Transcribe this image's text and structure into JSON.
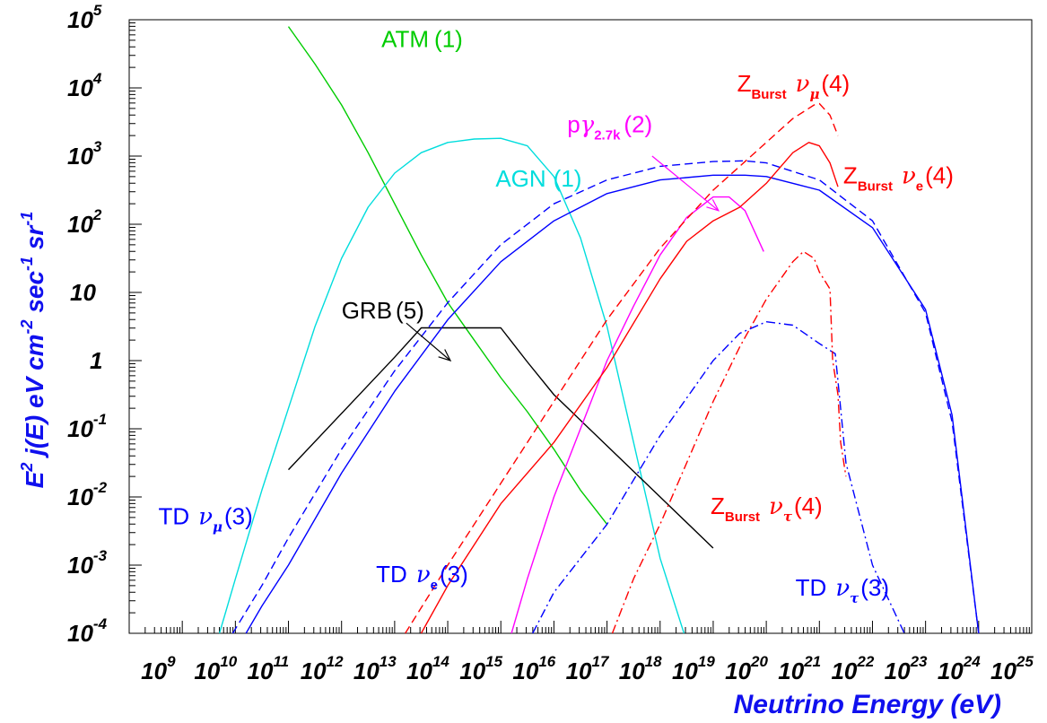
{
  "chart_data": {
    "type": "line",
    "xlabel": "Neutrino Energy (eV)",
    "ylabel": "E2 j(E) eV cm-2 sec-1 sr-1",
    "xscale": "log",
    "yscale": "log",
    "xlim": [
      8,
      25
    ],
    "ylim": [
      -4,
      5
    ],
    "grid": false,
    "x_ticks": [
      {
        "base": "10",
        "exp": "9",
        "value": 9
      },
      {
        "base": "10",
        "exp": "10",
        "value": 10
      },
      {
        "base": "10",
        "exp": "11",
        "value": 11
      },
      {
        "base": "10",
        "exp": "12",
        "value": 12
      },
      {
        "base": "10",
        "exp": "13",
        "value": 13
      },
      {
        "base": "10",
        "exp": "14",
        "value": 14
      },
      {
        "base": "10",
        "exp": "15",
        "value": 15
      },
      {
        "base": "10",
        "exp": "16",
        "value": 16
      },
      {
        "base": "10",
        "exp": "17",
        "value": 17
      },
      {
        "base": "10",
        "exp": "18",
        "value": 18
      },
      {
        "base": "10",
        "exp": "19",
        "value": 19
      },
      {
        "base": "10",
        "exp": "20",
        "value": 20
      },
      {
        "base": "10",
        "exp": "21",
        "value": 21
      },
      {
        "base": "10",
        "exp": "22",
        "value": 22
      },
      {
        "base": "10",
        "exp": "23",
        "value": 23
      },
      {
        "base": "10",
        "exp": "24",
        "value": 24
      },
      {
        "base": "10",
        "exp": "25",
        "value": 25
      }
    ],
    "y_ticks": [
      {
        "base": "10",
        "exp": "5",
        "value": 5
      },
      {
        "base": "10",
        "exp": "4",
        "value": 4
      },
      {
        "base": "10",
        "exp": "3",
        "value": 3
      },
      {
        "base": "10",
        "exp": "2",
        "value": 2
      },
      {
        "base": "10",
        "exp": "",
        "value": 1
      },
      {
        "base": "1",
        "exp": "",
        "value": 0
      },
      {
        "base": "10",
        "exp": "-1",
        "value": -1
      },
      {
        "base": "10",
        "exp": "-2",
        "value": -2
      },
      {
        "base": "10",
        "exp": "-3",
        "value": -3
      },
      {
        "base": "10",
        "exp": "-4",
        "value": -4
      }
    ],
    "series": [
      {
        "id": "atm",
        "color": "#00cc00",
        "dash": "solid",
        "x": [
          11.0,
          11.5,
          12.0,
          12.5,
          13.0,
          13.5,
          14.0,
          14.5,
          15.0,
          15.5,
          16.0,
          16.5,
          17.0
        ],
        "y": [
          4.9,
          4.35,
          3.75,
          3.05,
          2.3,
          1.55,
          0.85,
          0.3,
          -0.25,
          -0.75,
          -1.3,
          -1.9,
          -2.4
        ]
      },
      {
        "id": "agn",
        "color": "#00dddd",
        "dash": "solid",
        "x": [
          9.7,
          10.0,
          10.5,
          11.0,
          11.5,
          12.0,
          12.5,
          13.0,
          13.5,
          14.0,
          14.5,
          15.0,
          15.5,
          16.0,
          16.5,
          17.0,
          17.5,
          18.0,
          18.45
        ],
        "y": [
          -4.0,
          -3.2,
          -1.9,
          -0.7,
          0.5,
          1.5,
          2.25,
          2.75,
          3.05,
          3.2,
          3.25,
          3.26,
          3.15,
          2.7,
          1.8,
          0.5,
          -1.2,
          -2.9,
          -4.0
        ]
      },
      {
        "id": "grb",
        "color": "#000000",
        "dash": "solid",
        "x": [
          11.0,
          13.0,
          13.5,
          15.0,
          15.5,
          16.0,
          17.0,
          18.0,
          19.0
        ],
        "y": [
          -1.6,
          0.05,
          0.48,
          0.48,
          -0.02,
          -0.5,
          -1.25,
          -2.0,
          -2.75
        ]
      },
      {
        "id": "p_gamma",
        "color": "#ff00ff",
        "dash": "solid",
        "x": [
          15.2,
          15.5,
          16.0,
          16.5,
          17.0,
          17.5,
          18.0,
          18.5,
          19.0,
          19.3,
          19.6,
          19.95
        ],
        "y": [
          -4.0,
          -3.2,
          -2.0,
          -1.0,
          0.0,
          0.8,
          1.55,
          2.1,
          2.4,
          2.4,
          2.2,
          1.6
        ]
      },
      {
        "id": "td_numu",
        "color": "#0000ff",
        "dash": "dashed",
        "x": [
          9.95,
          10.5,
          11.0,
          12.0,
          13.0,
          14.0,
          15.0,
          16.0,
          17.0,
          18.0,
          19.0,
          19.6,
          20.0,
          21.0,
          22.0,
          23.0,
          23.5,
          24.0
        ],
        "y": [
          -4.0,
          -3.3,
          -2.6,
          -1.3,
          -0.15,
          0.85,
          1.7,
          2.3,
          2.65,
          2.85,
          2.92,
          2.93,
          2.9,
          2.65,
          2.05,
          0.7,
          -0.9,
          -4.0
        ]
      },
      {
        "id": "td_nue",
        "color": "#0000ff",
        "dash": "solid",
        "x": [
          10.2,
          10.5,
          11.0,
          12.0,
          13.0,
          14.0,
          15.0,
          16.0,
          17.0,
          18.0,
          19.0,
          19.6,
          20.0,
          21.0,
          22.0,
          23.0,
          23.5,
          24.0
        ],
        "y": [
          -4.0,
          -3.6,
          -3.0,
          -1.65,
          -0.45,
          0.6,
          1.45,
          2.05,
          2.45,
          2.65,
          2.72,
          2.72,
          2.7,
          2.5,
          1.95,
          0.75,
          -0.8,
          -4.0
        ]
      },
      {
        "id": "td_nutau",
        "color": "#0000ff",
        "dash": "dashdot",
        "x": [
          15.6,
          16.0,
          17.0,
          18.0,
          19.0,
          19.5,
          20.0,
          20.5,
          21.0,
          21.3,
          21.35,
          21.5,
          22.0,
          22.6
        ],
        "y": [
          -4.0,
          -3.4,
          -2.4,
          -1.1,
          0.0,
          0.4,
          0.57,
          0.52,
          0.25,
          0.1,
          -0.3,
          -1.5,
          -3.0,
          -4.0
        ]
      },
      {
        "id": "zb_numu",
        "color": "#ff0000",
        "dash": "dashed",
        "x": [
          13.2,
          14.0,
          15.0,
          16.0,
          17.0,
          18.0,
          19.0,
          20.0,
          20.5,
          20.9,
          21.0,
          21.2,
          21.35
        ],
        "y": [
          -4.0,
          -3.0,
          -1.8,
          -0.6,
          0.6,
          1.65,
          2.5,
          3.2,
          3.55,
          3.75,
          3.77,
          3.6,
          3.3
        ]
      },
      {
        "id": "zb_nue",
        "color": "#ff0000",
        "dash": "solid",
        "x": [
          13.5,
          14.0,
          15.0,
          16.0,
          17.0,
          18.0,
          18.5,
          19.0,
          19.5,
          20.0,
          20.5,
          20.8,
          21.0,
          21.2,
          21.35
        ],
        "y": [
          -4.0,
          -3.3,
          -2.1,
          -1.2,
          -0.1,
          1.2,
          1.75,
          2.05,
          2.25,
          2.6,
          3.05,
          3.2,
          3.15,
          2.9,
          2.55
        ]
      },
      {
        "id": "zb_nutau",
        "color": "#ff0000",
        "dash": "dashdot",
        "x": [
          17.1,
          17.5,
          18.0,
          18.5,
          19.0,
          19.5,
          20.0,
          20.5,
          20.7,
          20.9,
          21.0,
          21.2,
          21.25,
          21.35,
          21.4,
          21.5
        ],
        "y": [
          -4.0,
          -3.2,
          -2.4,
          -1.5,
          -0.6,
          0.2,
          0.9,
          1.45,
          1.6,
          1.5,
          1.3,
          1.05,
          0.0,
          -0.5,
          -1.2,
          -1.7
        ]
      }
    ],
    "labels": [
      {
        "id": "atm",
        "color": "#00cc00",
        "x": 12.75,
        "y": 4.6,
        "parts": [
          {
            "t": "ATM"
          },
          {
            "t": "(1)",
            "dx": 6
          }
        ]
      },
      {
        "id": "agn",
        "color": "#00dddd",
        "x": 14.9,
        "y": 2.55,
        "parts": [
          {
            "t": "AGN"
          },
          {
            "t": "(1)",
            "dx": 8
          }
        ]
      },
      {
        "id": "grb",
        "color": "#000000",
        "x": 12.0,
        "y": 0.62,
        "parts": [
          {
            "t": "GRB"
          },
          {
            "t": "(5)",
            "dx": 4
          }
        ]
      },
      {
        "id": "p_gamma",
        "color": "#ff00ff",
        "x": 16.25,
        "y": 3.35,
        "parts": [
          {
            "t": "p"
          },
          {
            "t": "γ",
            "greek": true
          },
          {
            "t": "2.7k",
            "sub": true
          },
          {
            "t": "(2)",
            "dx": 4
          }
        ]
      },
      {
        "id": "zb_numu",
        "color": "#ff0000",
        "x": 19.45,
        "y": 3.95,
        "parts": [
          {
            "t": "Z"
          },
          {
            "t": "Burst",
            "sub": true
          },
          {
            "t": "ν",
            "greek": true,
            "dx": 10
          },
          {
            "t": "μ",
            "greek": true,
            "sub": true
          },
          {
            "t": "(4)",
            "dx": 2
          }
        ]
      },
      {
        "id": "zb_nue",
        "color": "#ff0000",
        "x": 21.45,
        "y": 2.6,
        "parts": [
          {
            "t": "Z"
          },
          {
            "t": "Burst",
            "sub": true
          },
          {
            "t": "ν",
            "greek": true,
            "dx": 10
          },
          {
            "t": "e",
            "sub": true
          },
          {
            "t": "(4)",
            "dx": 2
          }
        ]
      },
      {
        "id": "zb_nutau",
        "color": "#ff0000",
        "x": 18.95,
        "y": -2.25,
        "parts": [
          {
            "t": "Z"
          },
          {
            "t": "Burst",
            "sub": true
          },
          {
            "t": "ν",
            "greek": true,
            "dx": 10
          },
          {
            "t": "τ",
            "greek": true,
            "sub": true
          },
          {
            "t": "(4)",
            "dx": 2
          }
        ]
      },
      {
        "id": "td_numu",
        "color": "#0000ff",
        "x": 8.55,
        "y": -2.4,
        "parts": [
          {
            "t": "TD"
          },
          {
            "t": "ν",
            "greek": true,
            "dx": 10
          },
          {
            "t": "μ",
            "greek": true,
            "sub": true
          },
          {
            "t": "(3)",
            "dx": 2
          }
        ]
      },
      {
        "id": "td_nue",
        "color": "#0000ff",
        "x": 12.65,
        "y": -3.25,
        "parts": [
          {
            "t": "TD"
          },
          {
            "t": "ν",
            "greek": true,
            "dx": 10
          },
          {
            "t": "e",
            "sub": true
          },
          {
            "t": "(3)",
            "dx": 2
          }
        ]
      },
      {
        "id": "td_nutau",
        "color": "#0000ff",
        "x": 20.55,
        "y": -3.45,
        "parts": [
          {
            "t": "TD"
          },
          {
            "t": "ν",
            "greek": true,
            "dx": 10
          },
          {
            "t": "τ",
            "greek": true,
            "sub": true
          },
          {
            "t": "(3)",
            "dx": 2
          }
        ]
      }
    ],
    "arrows": [
      {
        "id": "grb",
        "color": "#000000",
        "from": [
          13.22,
          0.55
        ],
        "to": [
          14.05,
          0.0
        ]
      },
      {
        "id": "p_gamma",
        "color": "#ff00ff",
        "from": [
          17.85,
          3.0
        ],
        "to": [
          19.1,
          2.2
        ]
      }
    ]
  }
}
